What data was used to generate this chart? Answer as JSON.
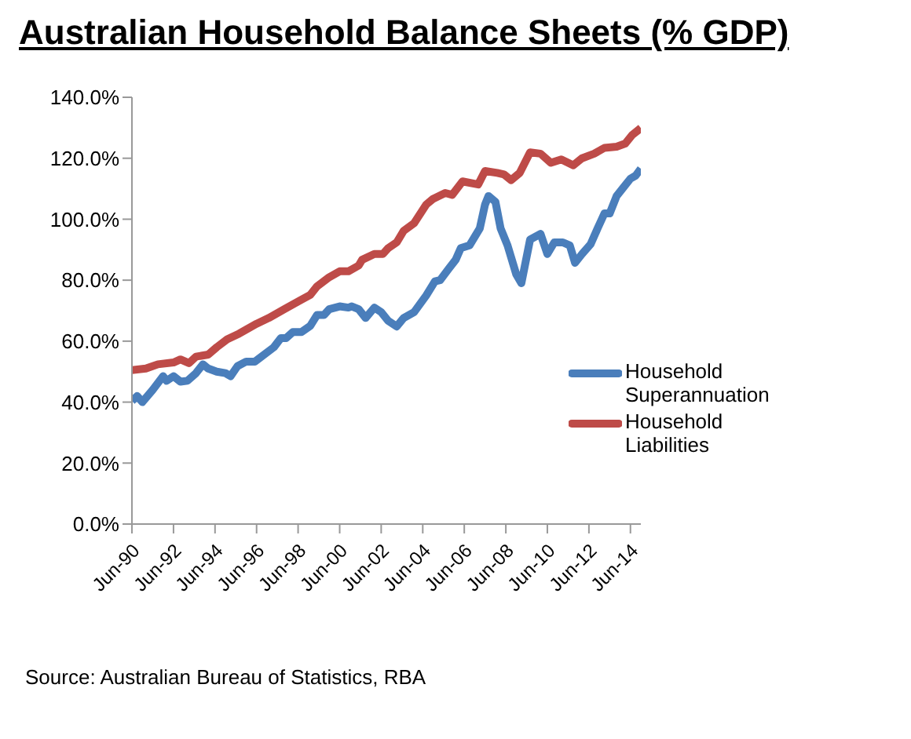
{
  "chart_data": {
    "type": "line",
    "title": "Australian Household Balance Sheets (% GDP)",
    "annotations": [
      "Source: Australian Bureau of Statistics, RBA"
    ],
    "xlim": [
      "1990-06",
      "2014-12"
    ],
    "xticks": [
      {
        "value": "1990-06",
        "label": "Jun-90"
      },
      {
        "value": "1992-06",
        "label": "Jun-92"
      },
      {
        "value": "1994-06",
        "label": "Jun-94"
      },
      {
        "value": "1996-06",
        "label": "Jun-96"
      },
      {
        "value": "1998-06",
        "label": "Jun-98"
      },
      {
        "value": "2000-06",
        "label": "Jun-00"
      },
      {
        "value": "2002-06",
        "label": "Jun-02"
      },
      {
        "value": "2004-06",
        "label": "Jun-04"
      },
      {
        "value": "2006-06",
        "label": "Jun-06"
      },
      {
        "value": "2008-06",
        "label": "Jun-08"
      },
      {
        "value": "2010-06",
        "label": "Jun-10"
      },
      {
        "value": "2012-06",
        "label": "Jun-12"
      },
      {
        "value": "2014-06",
        "label": "Jun-14"
      }
    ],
    "ylim": [
      0,
      140
    ],
    "yticks": [
      {
        "value": 0,
        "label": "0.0%"
      },
      {
        "value": 20,
        "label": "20.0%"
      },
      {
        "value": 40,
        "label": "40.0%"
      },
      {
        "value": 60,
        "label": "60.0%"
      },
      {
        "value": 80,
        "label": "80.0%"
      },
      {
        "value": 100,
        "label": "100.0%"
      },
      {
        "value": 120,
        "label": "120.0%"
      },
      {
        "value": 140,
        "label": "140.0%"
      }
    ],
    "grid": false,
    "legend": "right",
    "marker": "none",
    "line_style": "solid",
    "series": [
      {
        "name": "Household Superannuation",
        "color": "#4a7ebb",
        "x": [
          "1990-06",
          "1990-09",
          "1990-12",
          "1991-06",
          "1991-12",
          "1992-02",
          "1992-06",
          "1992-10",
          "1993-02",
          "1993-07",
          "1993-11",
          "1994-02",
          "1994-07",
          "1994-12",
          "1995-03",
          "1995-07",
          "1995-12",
          "1996-05",
          "1996-09",
          "1997-04",
          "1997-08",
          "1997-11",
          "1998-03",
          "1998-08",
          "1999-01",
          "1999-05",
          "1999-09",
          "1999-12",
          "2000-06",
          "2000-11",
          "2001-01",
          "2001-05",
          "2001-09",
          "2002-02",
          "2002-06",
          "2002-10",
          "2003-03",
          "2003-07",
          "2004-01",
          "2004-08",
          "2005-01",
          "2005-04",
          "2005-09",
          "2006-01",
          "2006-04",
          "2006-09",
          "2007-03",
          "2007-06",
          "2007-08",
          "2007-12",
          "2008-03",
          "2008-07",
          "2008-12",
          "2009-03",
          "2009-08",
          "2010-02",
          "2010-06",
          "2010-10",
          "2011-03",
          "2011-07",
          "2011-10",
          "2012-02",
          "2012-07",
          "2012-11",
          "2013-03",
          "2013-06",
          "2013-10",
          "2014-02",
          "2014-06",
          "2014-09",
          "2014-12"
        ],
        "values": [
          40.4,
          42,
          40,
          44,
          48.5,
          47,
          48.5,
          46.7,
          47,
          49.5,
          52.4,
          51,
          50,
          49.5,
          48.5,
          51.8,
          53.3,
          53.3,
          55,
          58,
          61,
          61,
          63,
          63,
          65,
          68.6,
          68.6,
          70.5,
          71.4,
          71,
          71.4,
          70.5,
          67.6,
          71,
          69.5,
          66.7,
          64.8,
          67.6,
          69.5,
          75,
          79.6,
          80,
          83.8,
          86.7,
          90.5,
          91.4,
          97,
          104.8,
          107.6,
          105.7,
          97,
          91.4,
          81.9,
          79,
          93.3,
          95.2,
          88.6,
          92.4,
          92.4,
          91.4,
          85.7,
          88.6,
          91.8,
          97,
          101.9,
          101.9,
          107.6,
          110.5,
          113.3,
          114.3,
          116.6
        ]
      },
      {
        "name": "Household Liabilities",
        "color": "#be4b48",
        "x": [
          "1990-06",
          "1991-02",
          "1991-09",
          "1992-06",
          "1992-10",
          "1993-03",
          "1993-07",
          "1994-02",
          "1994-07",
          "1995-01",
          "1995-08",
          "1995-12",
          "1996-06",
          "1997-01",
          "1997-10",
          "1998-07",
          "1999-01",
          "1999-05",
          "1999-12",
          "2000-06",
          "2000-11",
          "2001-05",
          "2001-07",
          "2002-02",
          "2002-07",
          "2002-10",
          "2003-03",
          "2003-07",
          "2004-01",
          "2004-08",
          "2004-12",
          "2005-07",
          "2005-11",
          "2006-05",
          "2007-02",
          "2007-06",
          "2008-01",
          "2008-05",
          "2008-09",
          "2009-02",
          "2009-08",
          "2010-02",
          "2010-08",
          "2011-02",
          "2011-09",
          "2012-02",
          "2012-09",
          "2013-03",
          "2013-10",
          "2014-03",
          "2014-07",
          "2014-12"
        ],
        "values": [
          50.5,
          51,
          52.4,
          53,
          54,
          52.8,
          54.9,
          55.6,
          58,
          60.6,
          62.5,
          63.8,
          65.7,
          67.6,
          70.5,
          73.3,
          75.2,
          78,
          81,
          82.9,
          82.9,
          84.8,
          86.7,
          88.6,
          88.6,
          90.5,
          92.4,
          96.2,
          98.7,
          104.8,
          106.7,
          108.6,
          108,
          112.4,
          111.4,
          115.8,
          115.2,
          114.7,
          112.8,
          115.2,
          121.9,
          121.5,
          118.5,
          119.6,
          117.7,
          120,
          121.5,
          123.4,
          123.8,
          124.8,
          127.6,
          129.9
        ]
      }
    ]
  }
}
